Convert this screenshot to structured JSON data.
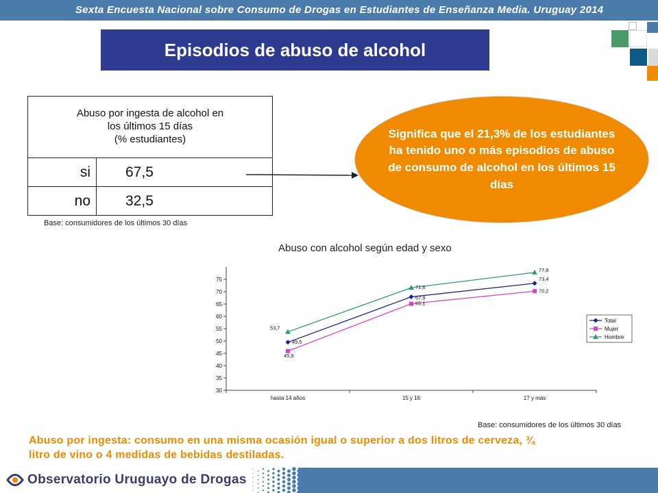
{
  "banner": {
    "text": "Sexta Encuesta Nacional sobre Consumo de Drogas en Estudiantes de Enseñanza Media. Uruguay 2014"
  },
  "title": "Episodios de abuso de alcohol",
  "table": {
    "header_lines": [
      "Abuso por ingesta de alcohol en",
      "los últimos 15 días",
      "(% estudiantes)"
    ],
    "rows": [
      {
        "label": "si",
        "value": "67,5"
      },
      {
        "label": "no",
        "value": "32,5"
      }
    ]
  },
  "base_note_top": "Base: consumidores de los últimos 30 días",
  "callout": "Significa que el 21,3% de los estudiantes ha  tenido uno o más episodios de  abuso  de consumo de alcohol en los últimos 15 días",
  "chart_heading": "Abuso con alcohol según edad y sexo",
  "chart_data": {
    "type": "line",
    "categories": [
      "hasta 14 años",
      "15 y 16",
      "17 y más"
    ],
    "ylim": [
      30,
      80
    ],
    "yticks": [
      30,
      35,
      40,
      45,
      50,
      55,
      60,
      65,
      70,
      75
    ],
    "grid": false,
    "legend": "right",
    "series": [
      {
        "name": "Total",
        "values": [
          49.5,
          67.9,
          73.4
        ],
        "labels": [
          "49,5",
          "67,9",
          "73,4"
        ],
        "color": "#1f1f8f",
        "marker": "diamond"
      },
      {
        "name": "Mujer",
        "values": [
          45.9,
          65.1,
          70.2
        ],
        "labels": [
          "45,9",
          "65,1",
          "70,2"
        ],
        "color": "#e040c8",
        "marker": "square"
      },
      {
        "name": "Hombre",
        "values": [
          53.7,
          71.6,
          77.8
        ],
        "labels": [
          "53,7",
          "71,6",
          "77,8"
        ],
        "color": "#2a9a7a",
        "marker": "triangle"
      }
    ]
  },
  "base_note_bottom": "Base: consumidores de los últimos 30 días",
  "footnote": "Abuso por ingesta: consumo en una misma ocasión igual o superior a dos litros de cerveza, ¾ litro de vino o 4 medidas de  bebidas destiladas.",
  "footer": {
    "org_name": "Observatorio Uruguayo de Drogas"
  },
  "colors": {
    "banner": "#4b7bab",
    "title_bg": "#2d3a8f",
    "accent": "#f08a00"
  }
}
